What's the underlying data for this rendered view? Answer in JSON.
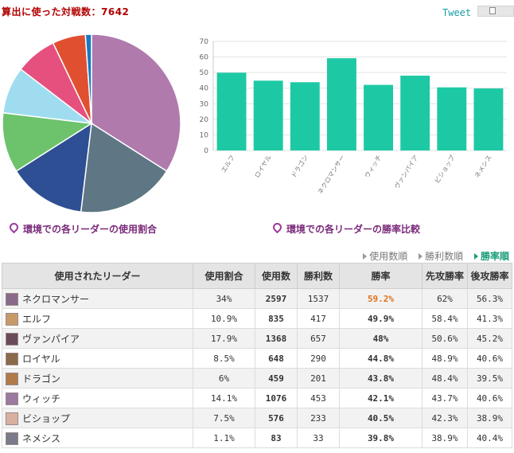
{
  "header": {
    "title": "算出に使った対戦数：7642",
    "tweet_label": "Tweet"
  },
  "chart_data": [
    {
      "type": "pie",
      "title": "",
      "slices": [
        {
          "label": "ネクロマンサー",
          "value": 34,
          "color": "#b07aad"
        },
        {
          "label": "ヴァンパイア",
          "value": 17.9,
          "color": "#5f7684"
        },
        {
          "label": "ウィッチ",
          "value": 14.1,
          "color": "#2e4f93"
        },
        {
          "label": "エルフ",
          "value": 10.9,
          "color": "#6cc36c"
        },
        {
          "label": "ロイヤル",
          "value": 8.5,
          "color": "#a0dcf0"
        },
        {
          "label": "ビショップ",
          "value": 7.5,
          "color": "#e6507e"
        },
        {
          "label": "ドラゴン",
          "value": 6,
          "color": "#e05030"
        },
        {
          "label": "ネメシス",
          "value": 1.1,
          "color": "#1a78c2"
        }
      ]
    },
    {
      "type": "bar",
      "title": "",
      "categories": [
        "エルフ",
        "ロイヤル",
        "ドラゴン",
        "ネクロマンサー",
        "ウィッチ",
        "ヴァンパイア",
        "ビショップ",
        "ネメシス"
      ],
      "values": [
        49.9,
        44.8,
        43.8,
        59.2,
        42.1,
        48,
        40.5,
        39.8
      ],
      "ylim": [
        0,
        70
      ],
      "yticks": [
        0,
        10,
        20,
        30,
        40,
        50,
        60,
        70
      ],
      "xlabel": "",
      "ylabel": "",
      "grid": true,
      "color": "#1dc9a4"
    }
  ],
  "captions": {
    "pie": "環境での各リーダーの使用割合",
    "bar": "環境での各リーダーの勝率比較"
  },
  "sort_options": [
    {
      "label": "使用数順",
      "active": false
    },
    {
      "label": "勝利数順",
      "active": false
    },
    {
      "label": "勝率順",
      "active": true
    }
  ],
  "table": {
    "headers": [
      "使用されたリーダー",
      "使用割合",
      "使用数",
      "勝利数",
      "勝率",
      "先攻勝率",
      "後攻勝率"
    ],
    "rows": [
      {
        "leader": "ネクロマンサー",
        "usage_pct": "34%",
        "usage_count": "2597",
        "wins": "1537",
        "winrate": "59.2%",
        "first_rate": "62%",
        "second_rate": "56.3%",
        "avatar_color": "#8a6a8a"
      },
      {
        "leader": "エルフ",
        "usage_pct": "10.9%",
        "usage_count": "835",
        "wins": "417",
        "winrate": "49.9%",
        "first_rate": "58.4%",
        "second_rate": "41.3%",
        "avatar_color": "#c89a6a"
      },
      {
        "leader": "ヴァンパイア",
        "usage_pct": "17.9%",
        "usage_count": "1368",
        "wins": "657",
        "winrate": "48%",
        "first_rate": "50.6%",
        "second_rate": "45.2%",
        "avatar_color": "#6a4a5a"
      },
      {
        "leader": "ロイヤル",
        "usage_pct": "8.5%",
        "usage_count": "648",
        "wins": "290",
        "winrate": "44.8%",
        "first_rate": "48.9%",
        "second_rate": "40.6%",
        "avatar_color": "#8a6a4a"
      },
      {
        "leader": "ドラゴン",
        "usage_pct": "6%",
        "usage_count": "459",
        "wins": "201",
        "winrate": "43.8%",
        "first_rate": "48.4%",
        "second_rate": "39.5%",
        "avatar_color": "#b07a4a"
      },
      {
        "leader": "ウィッチ",
        "usage_pct": "14.1%",
        "usage_count": "1076",
        "wins": "453",
        "winrate": "42.1%",
        "first_rate": "43.7%",
        "second_rate": "40.6%",
        "avatar_color": "#9a7aa0"
      },
      {
        "leader": "ビショップ",
        "usage_pct": "7.5%",
        "usage_count": "576",
        "wins": "233",
        "winrate": "40.5%",
        "first_rate": "42.3%",
        "second_rate": "38.9%",
        "avatar_color": "#d8b0a0"
      },
      {
        "leader": "ネメシス",
        "usage_pct": "1.1%",
        "usage_count": "83",
        "wins": "33",
        "winrate": "39.8%",
        "first_rate": "38.9%",
        "second_rate": "40.4%",
        "avatar_color": "#7a7a8a"
      }
    ]
  }
}
